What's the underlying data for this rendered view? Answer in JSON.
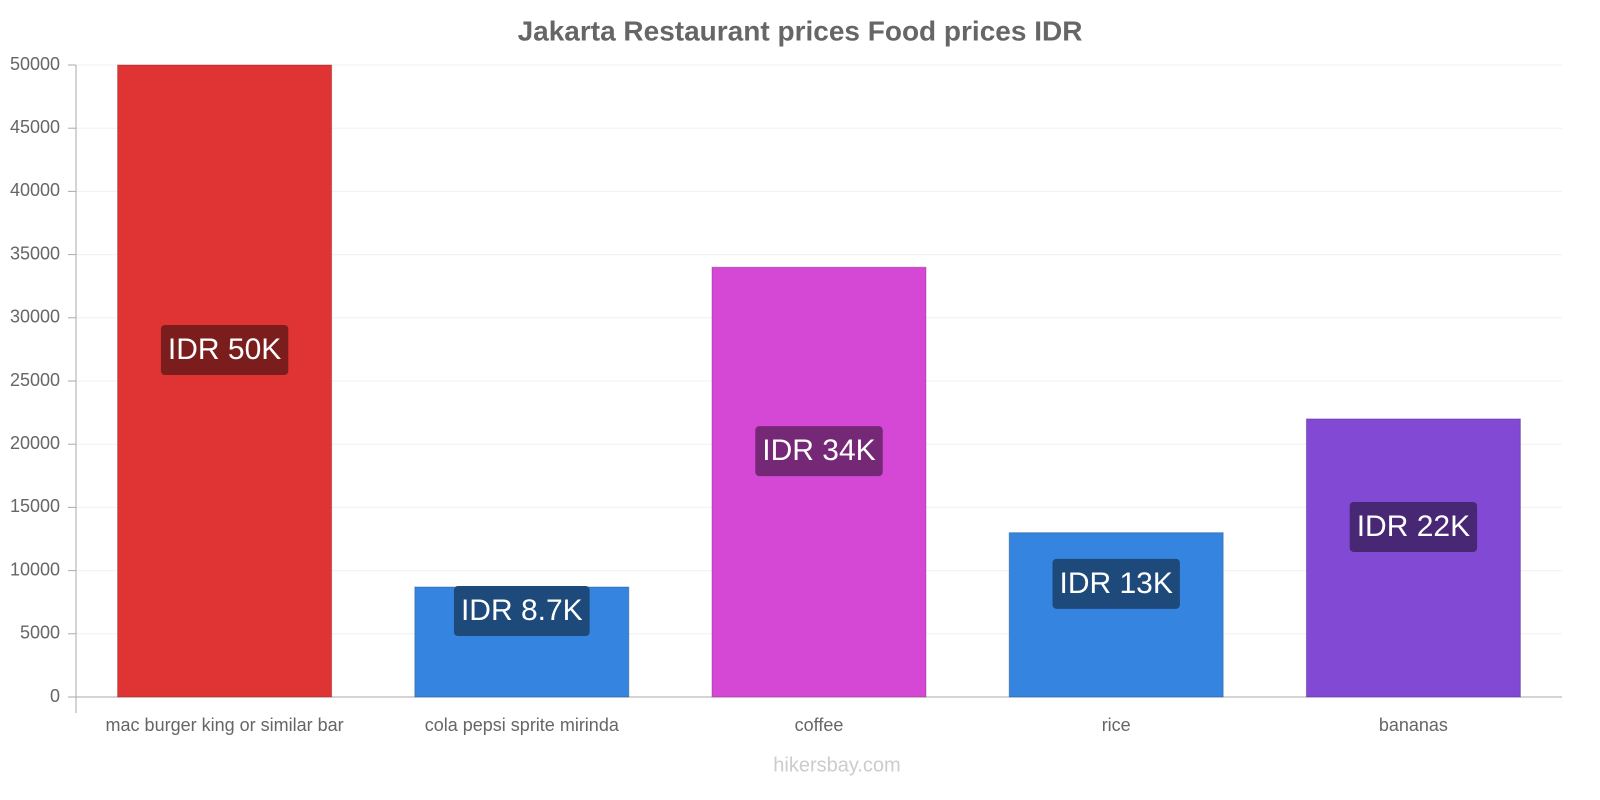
{
  "chart_data": {
    "type": "bar",
    "title": "Jakarta Restaurant prices Food prices IDR",
    "categories": [
      "mac burger king or similar bar",
      "cola pepsi sprite mirinda",
      "coffee",
      "rice",
      "bananas"
    ],
    "values": [
      50000,
      8700,
      34000,
      13000,
      22000
    ],
    "value_labels": [
      "IDR 50K",
      "IDR 8.7K",
      "IDR 34K",
      "IDR 13K",
      "IDR 22K"
    ],
    "colors": [
      "#e03434",
      "#3584e0",
      "#d548d5",
      "#3584e0",
      "#8249d5"
    ],
    "ylim": [
      0,
      50000
    ],
    "yticks": [
      0,
      5000,
      10000,
      15000,
      20000,
      25000,
      30000,
      35000,
      40000,
      45000,
      50000
    ],
    "grid": true,
    "source": "hikersbay.com"
  }
}
